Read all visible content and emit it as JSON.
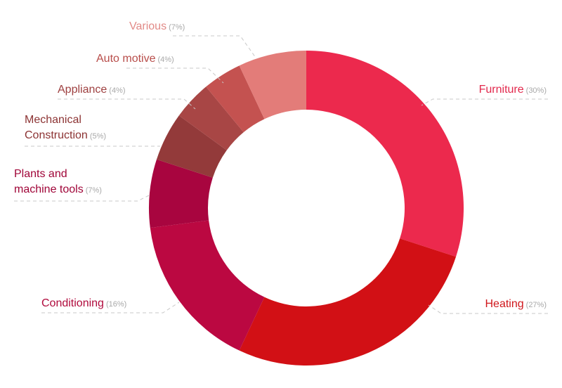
{
  "chart_data": {
    "type": "pie",
    "variant": "donut",
    "title": "",
    "slices": [
      {
        "key": "furniture",
        "label": "Furniture",
        "value": 30,
        "pct_label": "(30%)",
        "color": "#ec294d"
      },
      {
        "key": "heating",
        "label": "Heating",
        "value": 27,
        "pct_label": "(27%)",
        "color": "#d21015"
      },
      {
        "key": "conditioning",
        "label": "Conditioning",
        "value": 16,
        "pct_label": "(16%)",
        "color": "#bb0841"
      },
      {
        "key": "plants",
        "label": "Plants and machine tools",
        "label_lines": [
          "Plants and",
          "machine tools"
        ],
        "value": 7,
        "pct_label": "(7%)",
        "color": "#a8053f"
      },
      {
        "key": "mechanical",
        "label": "Mechanical Construction",
        "label_lines": [
          "Mechanical",
          "Construction"
        ],
        "value": 5,
        "pct_label": "(5%)",
        "color": "#933a3a"
      },
      {
        "key": "appliance",
        "label": "Appliance",
        "value": 4,
        "pct_label": "(4%)",
        "color": "#a84645"
      },
      {
        "key": "automotive",
        "label": "Auto motive",
        "value": 4,
        "pct_label": "(4%)",
        "color": "#c45250"
      },
      {
        "key": "various",
        "label": "Various",
        "value": 7,
        "pct_label": "(7%)",
        "color": "#e37c79"
      }
    ],
    "start_angle_deg": 0,
    "direction": "clockwise",
    "legend": "none (callout labels beside slices)",
    "leader_line_color": "#c8c8c8",
    "label_colors": {
      "furniture": "#e2284c",
      "heating": "#d0161b",
      "conditioning": "#b00a3c",
      "plants": "#a00538",
      "mechanical": "#8c3333",
      "appliance": "#9e4040",
      "automotive": "#b84d4a",
      "various": "#e28a87"
    }
  }
}
